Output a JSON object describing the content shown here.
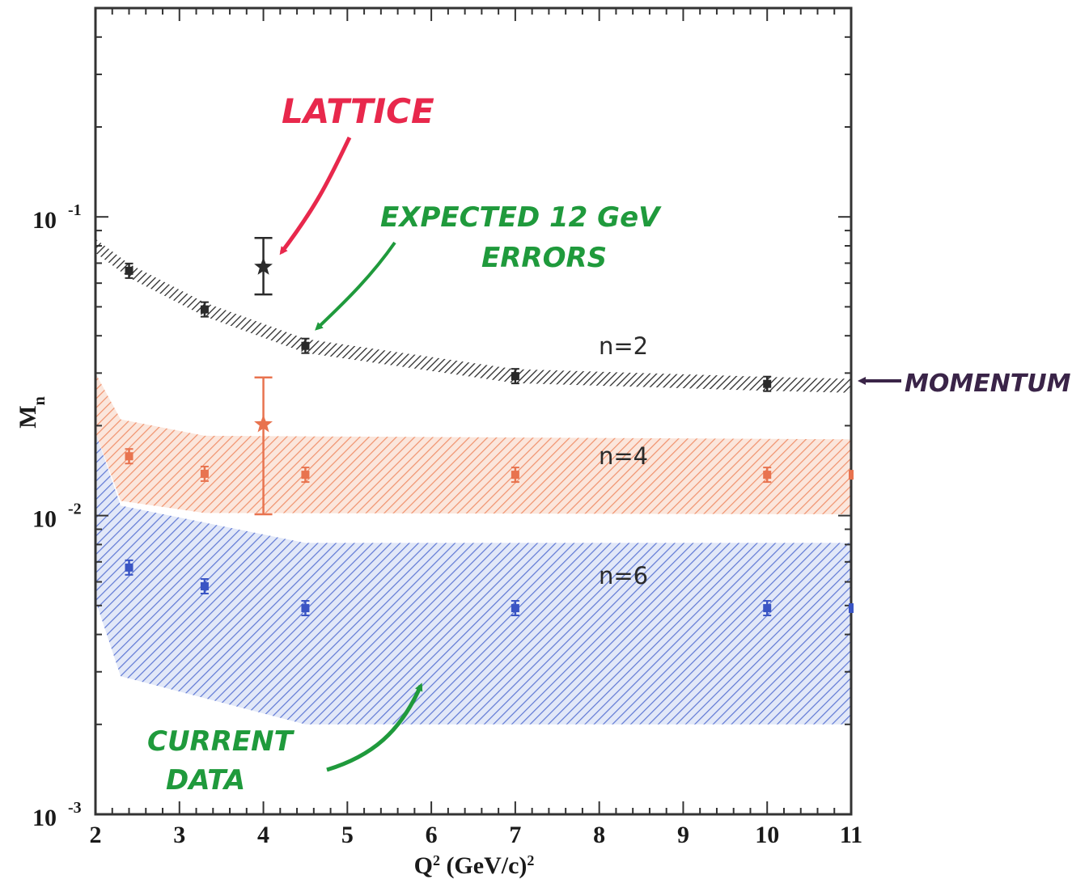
{
  "chart_data": {
    "type": "scatter",
    "title": "",
    "xlabel": "Q",
    "xlabel_sup": "2",
    "xlabel_unit": " (GeV/c)",
    "xlabel_unit_sup": "2",
    "ylabel": "M",
    "ylabel_sub": "n",
    "xlim": [
      2,
      11
    ],
    "ylim": [
      0.001,
      0.5
    ],
    "yscale": "log",
    "grid": false,
    "x_ticks": [
      "2",
      "3",
      "4",
      "5",
      "6",
      "7",
      "8",
      "9",
      "10",
      "11"
    ],
    "y_ticks": [
      {
        "base": "10",
        "exp": "-1"
      },
      {
        "base": "10",
        "exp": "-2"
      },
      {
        "base": "10",
        "exp": "-3"
      }
    ],
    "series": [
      {
        "name": "n=2",
        "color": "#2a2a2a",
        "x": [
          2.4,
          3.3,
          4.5,
          7.0,
          10.0
        ],
        "y": [
          0.066,
          0.049,
          0.037,
          0.0293,
          0.0276
        ],
        "band_x": [
          2.0,
          2.4,
          3.3,
          4.5,
          7.0,
          10.0,
          11.0
        ],
        "band_y": [
          0.08,
          0.066,
          0.049,
          0.037,
          0.0293,
          0.0276,
          0.0272
        ]
      },
      {
        "name": "n=4",
        "color": "#e8734f",
        "x": [
          2.4,
          3.3,
          4.5,
          7.0,
          10.0
        ],
        "y": [
          0.0158,
          0.0138,
          0.0137,
          0.0137,
          0.0137
        ],
        "band_x": [
          2.0,
          2.3,
          3.3,
          11.0
        ],
        "band_upper": [
          0.03,
          0.021,
          0.0185,
          0.018
        ],
        "band_lower": [
          0.019,
          0.0112,
          0.0102,
          0.0101
        ]
      },
      {
        "name": "n=6",
        "color": "#3a55c4",
        "x": [
          2.4,
          3.3,
          4.5,
          7.0,
          10.0
        ],
        "y": [
          0.0067,
          0.0058,
          0.0049,
          0.0049,
          0.0049
        ],
        "band_x": [
          2.0,
          2.3,
          4.5,
          11.0
        ],
        "band_upper": [
          0.019,
          0.0108,
          0.0081,
          0.0081
        ],
        "band_lower": [
          0.0052,
          0.0029,
          0.002,
          0.002
        ]
      }
    ],
    "lattice_points": [
      {
        "x": 4.0,
        "y": 0.068,
        "err_low": 0.055,
        "err_high": 0.085,
        "color": "#2a2a2a"
      },
      {
        "x": 4.0,
        "y": 0.0202,
        "err_low": 0.0101,
        "err_high": 0.029,
        "color": "#e8734f"
      }
    ],
    "annotations": {
      "lattice": "LATTICE",
      "expected_line1": "EXPECTED 12 GeV",
      "expected_line2": "ERRORS",
      "momentum": "MOMENTUM",
      "current_line1": "CURRENT",
      "current_line2": "DATA"
    },
    "colors": {
      "lattice_annotation": "#e8284c",
      "green_annotation": "#1f9a3c",
      "momentum_annotation": "#3a2448",
      "axis": "#333333"
    }
  }
}
